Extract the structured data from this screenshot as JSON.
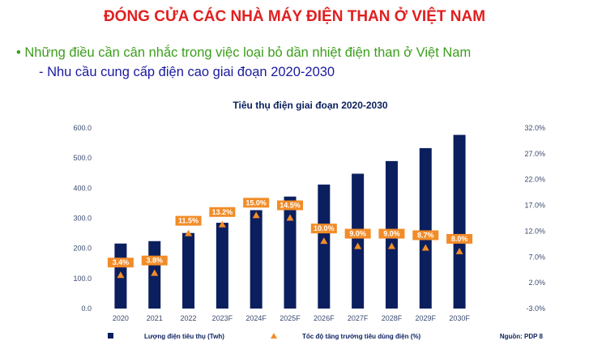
{
  "slide": {
    "title": "ĐÓNG CỬA CÁC NHÀ MÁY ĐIỆN THAN Ở VIỆT NAM",
    "bullet": "• Những điều cần cân nhắc trong việc loại bỏ dần nhiệt điện than ở Việt Nam",
    "sub_bullet": "- Nhu cầu cung cấp điện cao giai đoạn 2020-2030"
  },
  "chart_data": {
    "type": "bar",
    "title": "Tiêu thụ điện giai đoạn 2020-2030",
    "categories": [
      "2020",
      "2021",
      "2022",
      "2023F",
      "2024F",
      "2025F",
      "2026F",
      "2027F",
      "2028F",
      "2029F",
      "2030F"
    ],
    "series": [
      {
        "name": "Lượng điện tiêu thụ (Twh)",
        "type": "bar",
        "axis": "left",
        "color": "#0b1f5e",
        "values": [
          216,
          224,
          251,
          285,
          327,
          372,
          412,
          448,
          490,
          533,
          577
        ]
      },
      {
        "name": "Tốc độ tăng trưởng tiêu dùng điện  (%)",
        "type": "marker",
        "axis": "right",
        "color": "#f28c28",
        "values": [
          3.4,
          3.8,
          11.5,
          13.2,
          15.0,
          14.5,
          10.0,
          9.0,
          9.0,
          8.7,
          8.0
        ],
        "labels": [
          "3.4%",
          "3.8%",
          "11.5%",
          "13.2%",
          "15.0%",
          "14.5%",
          "10.0%",
          "9.0%",
          "9.0%",
          "8.7%",
          "8.0%"
        ]
      }
    ],
    "y_left": {
      "min": 0,
      "max": 600,
      "ticks": [
        "0.0",
        "100.0",
        "200.0",
        "300.0",
        "400.0",
        "500.0",
        "600.0"
      ]
    },
    "y_right": {
      "min": -3,
      "max": 32,
      "ticks": [
        "-3.0%",
        "2.0%",
        "7.0%",
        "12.0%",
        "17.0%",
        "22.0%",
        "27.0%",
        "32.0%"
      ]
    },
    "grid": false,
    "legend_position": "bottom",
    "source": "Nguồn: PDP 8"
  }
}
